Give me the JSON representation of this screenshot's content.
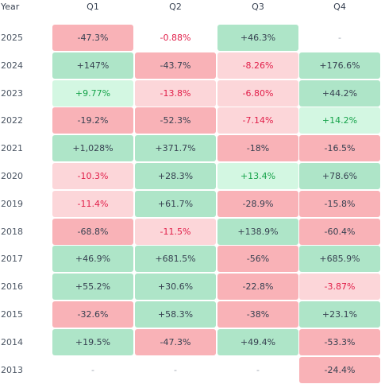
{
  "header": {
    "year_label": "Year",
    "quarters": [
      "Q1",
      "Q2",
      "Q3",
      "Q4"
    ]
  },
  "rows": [
    {
      "year": "2025",
      "cells": [
        {
          "text": "-47.3%",
          "kind": "neg_strong"
        },
        {
          "text": "-0.88%",
          "kind": "neg_text"
        },
        {
          "text": "+46.3%",
          "kind": "pos_strong"
        },
        {
          "text": "-",
          "kind": "empty"
        }
      ]
    },
    {
      "year": "2024",
      "cells": [
        {
          "text": "+147%",
          "kind": "pos_strong"
        },
        {
          "text": "-43.7%",
          "kind": "neg_strong"
        },
        {
          "text": "-8.26%",
          "kind": "neg_light"
        },
        {
          "text": "+176.6%",
          "kind": "pos_strong"
        }
      ]
    },
    {
      "year": "2023",
      "cells": [
        {
          "text": "+9.77%",
          "kind": "pos_light"
        },
        {
          "text": "-13.8%",
          "kind": "neg_light"
        },
        {
          "text": "-6.80%",
          "kind": "neg_light"
        },
        {
          "text": "+44.2%",
          "kind": "pos_strong"
        }
      ]
    },
    {
      "year": "2022",
      "cells": [
        {
          "text": "-19.2%",
          "kind": "neg_strong"
        },
        {
          "text": "-52.3%",
          "kind": "neg_strong"
        },
        {
          "text": "-7.14%",
          "kind": "neg_light"
        },
        {
          "text": "+14.2%",
          "kind": "pos_light"
        }
      ]
    },
    {
      "year": "2021",
      "cells": [
        {
          "text": "+1,028%",
          "kind": "pos_strong"
        },
        {
          "text": "+371.7%",
          "kind": "pos_strong"
        },
        {
          "text": "-18%",
          "kind": "neg_strong"
        },
        {
          "text": "-16.5%",
          "kind": "neg_strong"
        }
      ]
    },
    {
      "year": "2020",
      "cells": [
        {
          "text": "-10.3%",
          "kind": "neg_light"
        },
        {
          "text": "+28.3%",
          "kind": "pos_strong"
        },
        {
          "text": "+13.4%",
          "kind": "pos_light"
        },
        {
          "text": "+78.6%",
          "kind": "pos_strong"
        }
      ]
    },
    {
      "year": "2019",
      "cells": [
        {
          "text": "-11.4%",
          "kind": "neg_light"
        },
        {
          "text": "+61.7%",
          "kind": "pos_strong"
        },
        {
          "text": "-28.9%",
          "kind": "neg_strong"
        },
        {
          "text": "-15.8%",
          "kind": "neg_strong"
        }
      ]
    },
    {
      "year": "2018",
      "cells": [
        {
          "text": "-68.8%",
          "kind": "neg_strong"
        },
        {
          "text": "-11.5%",
          "kind": "neg_light"
        },
        {
          "text": "+138.9%",
          "kind": "pos_strong"
        },
        {
          "text": "-60.4%",
          "kind": "neg_strong"
        }
      ]
    },
    {
      "year": "2017",
      "cells": [
        {
          "text": "+46.9%",
          "kind": "pos_strong"
        },
        {
          "text": "+681.5%",
          "kind": "pos_strong"
        },
        {
          "text": "-56%",
          "kind": "neg_strong"
        },
        {
          "text": "+685.9%",
          "kind": "pos_strong"
        }
      ]
    },
    {
      "year": "2016",
      "cells": [
        {
          "text": "+55.2%",
          "kind": "pos_strong"
        },
        {
          "text": "+30.6%",
          "kind": "pos_strong"
        },
        {
          "text": "-22.8%",
          "kind": "neg_strong"
        },
        {
          "text": "-3.87%",
          "kind": "neg_light"
        }
      ]
    },
    {
      "year": "2015",
      "cells": [
        {
          "text": "-32.6%",
          "kind": "neg_strong"
        },
        {
          "text": "+58.3%",
          "kind": "pos_strong"
        },
        {
          "text": "-38%",
          "kind": "neg_strong"
        },
        {
          "text": "+23.1%",
          "kind": "pos_strong"
        }
      ]
    },
    {
      "year": "2014",
      "cells": [
        {
          "text": "+19.5%",
          "kind": "pos_strong"
        },
        {
          "text": "-47.3%",
          "kind": "neg_strong"
        },
        {
          "text": "+49.4%",
          "kind": "pos_strong"
        },
        {
          "text": "-53.3%",
          "kind": "neg_strong"
        }
      ]
    },
    {
      "year": "2013",
      "cells": [
        {
          "text": "-",
          "kind": "empty"
        },
        {
          "text": "-",
          "kind": "empty"
        },
        {
          "text": "-",
          "kind": "empty"
        },
        {
          "text": "-24.4%",
          "kind": "neg_strong"
        }
      ]
    }
  ],
  "styles": {
    "pos_strong": {
      "bg": "#aee5c8",
      "fg": "#374151"
    },
    "pos_light": {
      "bg": "#d3f7e2",
      "fg": "#16a34a"
    },
    "neg_strong": {
      "bg": "#f9b2b7",
      "fg": "#374151"
    },
    "neg_light": {
      "bg": "#fcd6d9",
      "fg": "#e11d48"
    },
    "neg_text": {
      "bg": "#ffffff",
      "fg": "#e11d48"
    },
    "empty": {
      "bg": "#ffffff",
      "fg": "#9ca3af"
    }
  }
}
